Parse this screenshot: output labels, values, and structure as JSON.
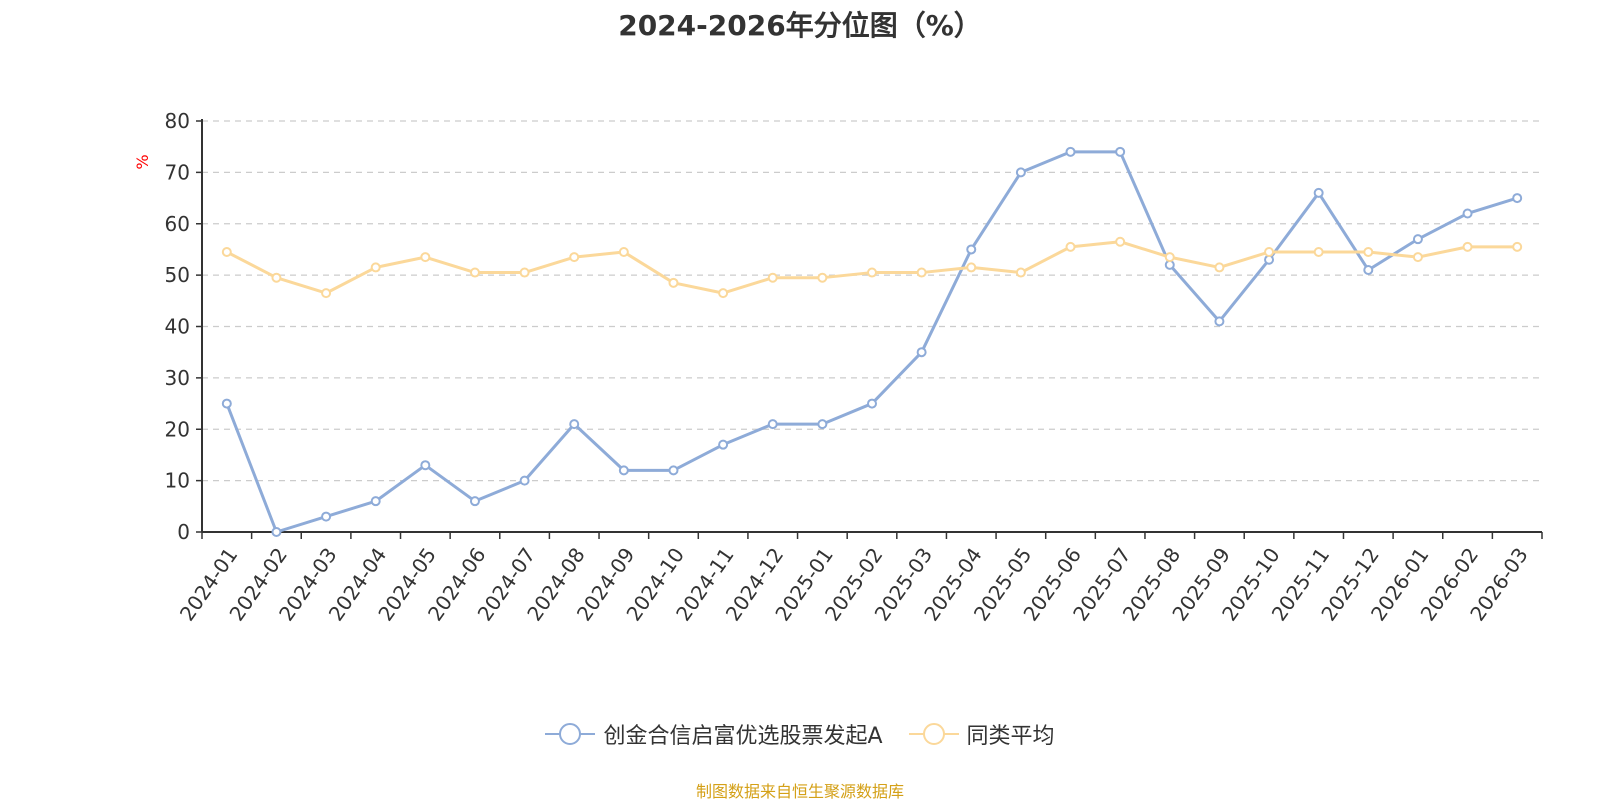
{
  "chart_data": {
    "type": "line",
    "title": "2024-2026年分位图（%）",
    "ylabel": "%",
    "xlabel": "",
    "ylim": [
      0,
      80
    ],
    "yticks": [
      0,
      10,
      20,
      30,
      40,
      50,
      60,
      70,
      80
    ],
    "grid": true,
    "legend_position": "bottom",
    "categories": [
      "2024-01",
      "2024-02",
      "2024-03",
      "2024-04",
      "2024-05",
      "2024-06",
      "2024-07",
      "2024-08",
      "2024-09",
      "2024-10",
      "2024-11",
      "2024-12",
      "2025-01",
      "2025-02",
      "2025-03",
      "2025-04",
      "2025-05",
      "2025-06",
      "2025-07",
      "2025-08",
      "2025-09",
      "2025-10",
      "2025-11",
      "2025-12",
      "2026-01",
      "2026-02",
      "2026-03"
    ],
    "series": [
      {
        "name": "创金合信启富优选股票发起A",
        "color": "#8eabd8",
        "values": [
          25,
          0,
          3,
          6,
          13,
          6,
          10,
          21,
          12,
          12,
          17,
          21,
          21,
          25,
          35,
          55,
          70,
          74,
          74,
          52,
          41,
          53,
          66,
          51,
          57,
          62,
          65
        ]
      },
      {
        "name": "同类平均",
        "color": "#fbd89a",
        "values": [
          54.5,
          49.5,
          46.5,
          51.5,
          53.5,
          50.5,
          50.5,
          53.5,
          54.5,
          48.5,
          46.5,
          49.5,
          49.5,
          50.5,
          50.5,
          51.5,
          50.5,
          55.5,
          56.5,
          53.5,
          51.5,
          54.5,
          54.5,
          54.5,
          53.5,
          55.5,
          55.5
        ]
      }
    ]
  },
  "source": "制图数据来自恒生聚源数据库"
}
